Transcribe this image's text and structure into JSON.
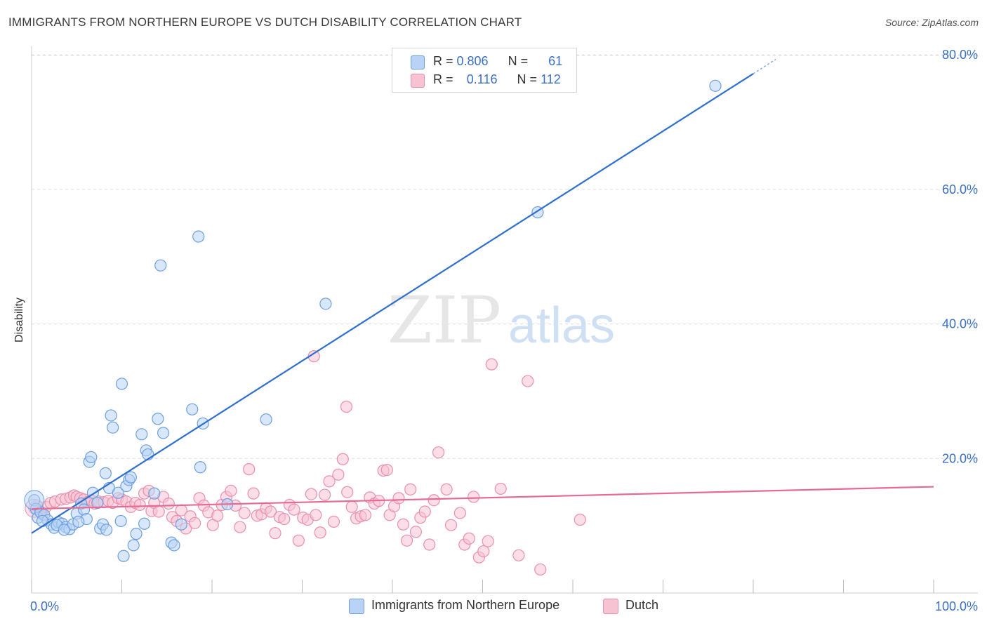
{
  "header": {
    "title": "IMMIGRANTS FROM NORTHERN EUROPE VS DUTCH DISABILITY CORRELATION CHART",
    "source": "Source: ZipAtlas.com"
  },
  "watermark": {
    "zip": "ZIP",
    "atlas": "atlas"
  },
  "colors": {
    "blue_fill": "#b8d3f5",
    "blue_stroke": "#6d9fe0",
    "blue_line": "#2f6fd0",
    "pink_fill": "#f7c3d3",
    "pink_stroke": "#ea8fae",
    "pink_line": "#e56b96",
    "tick_label": "#3b6fc4",
    "grid": "#dcdcdc"
  },
  "legend": {
    "rows": [
      {
        "r_label": "R = ",
        "r_value": "0.806",
        "n_label": "N = ",
        "n_value": "61"
      },
      {
        "r_label": "R = ",
        "r_value": "0.116",
        "n_label": "N = ",
        "n_value": "112"
      }
    ]
  },
  "bottom_legend": [
    {
      "label": "Immigrants from Northern Europe"
    },
    {
      "label": "Dutch"
    }
  ],
  "chart_data": {
    "type": "scatter",
    "title": "IMMIGRANTS FROM NORTHERN EUROPE VS DUTCH DISABILITY CORRELATION CHART",
    "xlabel": "",
    "ylabel": "Disability",
    "xlim": [
      0,
      100
    ],
    "ylim": [
      0,
      80
    ],
    "x_tick_labels": [
      "0.0%",
      "100.0%"
    ],
    "y_ticks": [
      20,
      40,
      60,
      80
    ],
    "y_tick_labels": [
      "20.0%",
      "40.0%",
      "60.0%",
      "80.0%"
    ],
    "grid": true,
    "legend_position": "top-center",
    "series": [
      {
        "name": "Immigrants from Northern Europe",
        "r": 0.806,
        "n": 61,
        "trend": {
          "x": [
            0,
            80
          ],
          "y": [
            8.9,
            77.2
          ]
        },
        "points": [
          [
            0.3,
            13.8
          ],
          [
            0.5,
            12.5
          ],
          [
            0.7,
            11.2
          ],
          [
            1.0,
            12.0
          ],
          [
            1.4,
            11.6
          ],
          [
            1.8,
            10.8
          ],
          [
            2.2,
            10.2
          ],
          [
            2.5,
            9.7
          ],
          [
            3.0,
            10.5
          ],
          [
            3.4,
            10.3
          ],
          [
            3.8,
            9.8
          ],
          [
            4.2,
            9.5
          ],
          [
            4.6,
            10.2
          ],
          [
            5.0,
            11.8
          ],
          [
            5.5,
            13.3
          ],
          [
            5.8,
            12.4
          ],
          [
            6.1,
            11.0
          ],
          [
            6.4,
            19.5
          ],
          [
            6.6,
            20.2
          ],
          [
            6.8,
            14.9
          ],
          [
            7.3,
            13.4
          ],
          [
            7.6,
            9.6
          ],
          [
            7.9,
            10.2
          ],
          [
            8.2,
            17.8
          ],
          [
            8.3,
            9.4
          ],
          [
            8.6,
            15.6
          ],
          [
            8.8,
            26.4
          ],
          [
            9.0,
            24.6
          ],
          [
            9.6,
            14.9
          ],
          [
            9.9,
            10.7
          ],
          [
            10.0,
            31.1
          ],
          [
            10.2,
            5.5
          ],
          [
            10.5,
            15.9
          ],
          [
            10.8,
            16.8
          ],
          [
            11.0,
            17.2
          ],
          [
            11.3,
            7.1
          ],
          [
            11.6,
            8.8
          ],
          [
            12.2,
            23.6
          ],
          [
            12.5,
            10.3
          ],
          [
            12.7,
            21.2
          ],
          [
            12.9,
            20.6
          ],
          [
            13.6,
            14.8
          ],
          [
            14.0,
            25.9
          ],
          [
            14.3,
            48.7
          ],
          [
            14.6,
            23.8
          ],
          [
            15.5,
            7.5
          ],
          [
            15.8,
            7.1
          ],
          [
            16.6,
            10.2
          ],
          [
            17.8,
            27.3
          ],
          [
            18.5,
            53.0
          ],
          [
            18.7,
            18.7
          ],
          [
            19.0,
            25.2
          ],
          [
            21.7,
            13.2
          ],
          [
            26.0,
            25.8
          ],
          [
            32.6,
            43.0
          ],
          [
            56.1,
            56.6
          ],
          [
            75.8,
            75.4
          ],
          [
            2.8,
            10.1
          ],
          [
            5.2,
            10.6
          ],
          [
            3.6,
            9.4
          ],
          [
            1.2,
            10.7
          ]
        ]
      },
      {
        "name": "Dutch",
        "r": 0.116,
        "n": 112,
        "trend": {
          "x": [
            0,
            100
          ],
          "y": [
            12.5,
            15.8
          ]
        },
        "points": [
          [
            0.3,
            12.6
          ],
          [
            0.6,
            13.0
          ],
          [
            0.9,
            12.2
          ],
          [
            1.2,
            11.7
          ],
          [
            1.6,
            12.8
          ],
          [
            2.1,
            13.4
          ],
          [
            2.6,
            13.6
          ],
          [
            3.3,
            13.9
          ],
          [
            3.8,
            14.0
          ],
          [
            4.3,
            14.2
          ],
          [
            4.7,
            14.5
          ],
          [
            5.0,
            14.3
          ],
          [
            5.4,
            14.1
          ],
          [
            5.8,
            13.9
          ],
          [
            6.2,
            13.5
          ],
          [
            6.6,
            13.8
          ],
          [
            7.0,
            13.3
          ],
          [
            7.4,
            13.6
          ],
          [
            8.0,
            13.5
          ],
          [
            8.5,
            13.7
          ],
          [
            9.0,
            13.4
          ],
          [
            9.6,
            14.1
          ],
          [
            10.0,
            13.9
          ],
          [
            10.5,
            13.6
          ],
          [
            11.0,
            12.8
          ],
          [
            11.5,
            13.4
          ],
          [
            12.0,
            13.1
          ],
          [
            12.5,
            14.8
          ],
          [
            13.0,
            15.2
          ],
          [
            13.3,
            12.2
          ],
          [
            13.6,
            13.4
          ],
          [
            14.1,
            12.1
          ],
          [
            14.6,
            14.3
          ],
          [
            15.2,
            13.3
          ],
          [
            15.6,
            11.3
          ],
          [
            16.1,
            10.7
          ],
          [
            16.6,
            12.3
          ],
          [
            17.1,
            9.6
          ],
          [
            17.6,
            11.4
          ],
          [
            18.1,
            10.4
          ],
          [
            18.6,
            14.1
          ],
          [
            19.1,
            13.0
          ],
          [
            19.6,
            12.0
          ],
          [
            20.1,
            10.1
          ],
          [
            20.6,
            11.5
          ],
          [
            21.1,
            13.1
          ],
          [
            21.6,
            14.3
          ],
          [
            22.1,
            15.2
          ],
          [
            22.6,
            13.0
          ],
          [
            23.1,
            9.8
          ],
          [
            23.6,
            11.9
          ],
          [
            24.1,
            18.4
          ],
          [
            24.6,
            14.8
          ],
          [
            25.0,
            11.5
          ],
          [
            25.5,
            11.7
          ],
          [
            26.0,
            12.6
          ],
          [
            26.5,
            12.1
          ],
          [
            27.0,
            8.9
          ],
          [
            27.5,
            11.3
          ],
          [
            28.0,
            11.0
          ],
          [
            28.6,
            13.1
          ],
          [
            29.1,
            12.4
          ],
          [
            29.6,
            7.8
          ],
          [
            30.1,
            11.2
          ],
          [
            30.6,
            10.9
          ],
          [
            31.0,
            14.7
          ],
          [
            31.3,
            35.2
          ],
          [
            31.5,
            11.6
          ],
          [
            32.0,
            9.0
          ],
          [
            32.5,
            14.6
          ],
          [
            33.0,
            16.6
          ],
          [
            33.5,
            10.6
          ],
          [
            34.0,
            17.6
          ],
          [
            34.5,
            19.9
          ],
          [
            34.9,
            27.7
          ],
          [
            35.0,
            15.0
          ],
          [
            35.5,
            12.8
          ],
          [
            36.0,
            11.1
          ],
          [
            36.5,
            11.4
          ],
          [
            37.0,
            11.6
          ],
          [
            37.5,
            14.2
          ],
          [
            38.0,
            13.3
          ],
          [
            38.5,
            13.7
          ],
          [
            39.0,
            18.2
          ],
          [
            39.4,
            18.3
          ],
          [
            39.7,
            11.6
          ],
          [
            40.2,
            12.9
          ],
          [
            40.7,
            14.1
          ],
          [
            41.2,
            10.2
          ],
          [
            41.6,
            7.8
          ],
          [
            42.0,
            15.4
          ],
          [
            42.6,
            9.1
          ],
          [
            43.1,
            11.2
          ],
          [
            43.6,
            12.1
          ],
          [
            44.1,
            7.2
          ],
          [
            44.6,
            13.8
          ],
          [
            45.1,
            20.9
          ],
          [
            46.0,
            15.4
          ],
          [
            46.5,
            10.1
          ],
          [
            47.5,
            11.9
          ],
          [
            48.0,
            7.2
          ],
          [
            48.5,
            8.1
          ],
          [
            49.0,
            14.3
          ],
          [
            49.6,
            5.3
          ],
          [
            50.1,
            6.2
          ],
          [
            50.6,
            7.7
          ],
          [
            51.0,
            34.0
          ],
          [
            52.0,
            15.5
          ],
          [
            54.0,
            5.6
          ],
          [
            55.0,
            31.5
          ],
          [
            56.4,
            3.5
          ],
          [
            60.8,
            10.9
          ]
        ]
      }
    ]
  }
}
